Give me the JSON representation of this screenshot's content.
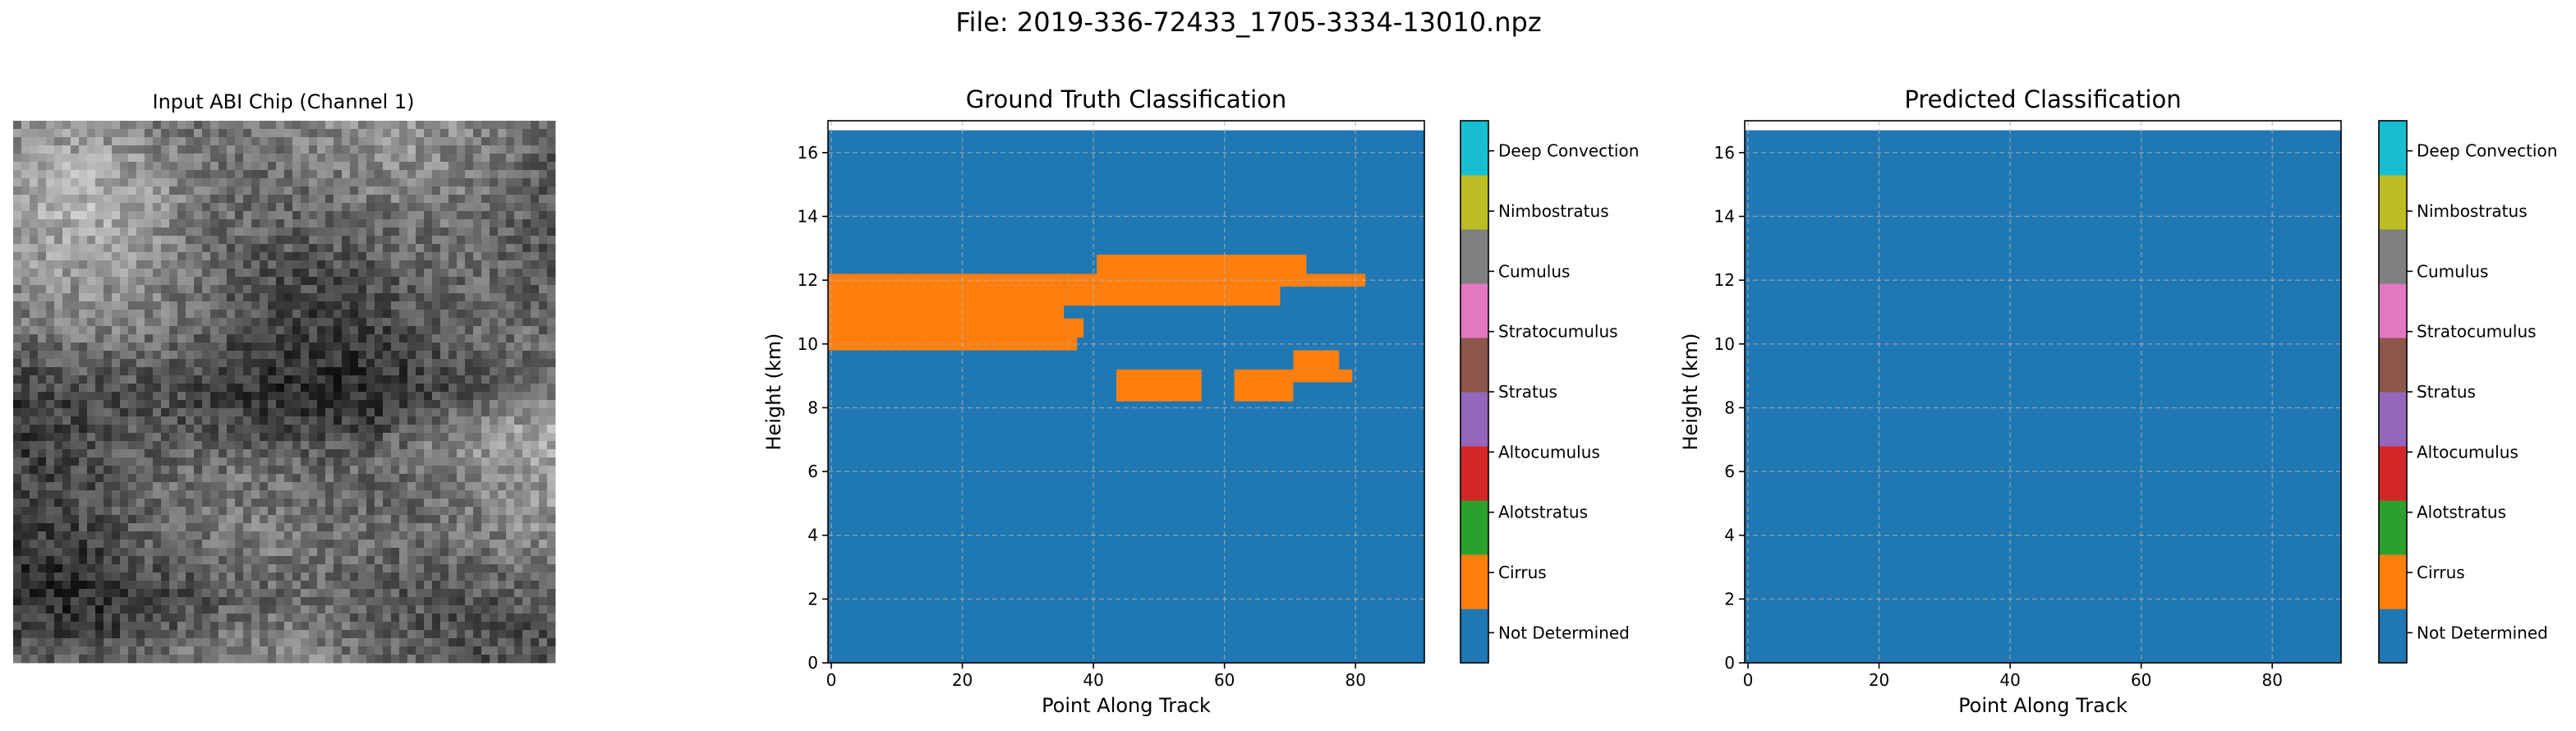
{
  "figure_title": "File: 2019-336-72433_1705-3334-13010.npz",
  "image_panel": {
    "title": "Input ABI Chip (Channel 1)"
  },
  "class_colors": {
    "Not Determined": "#1f77b4",
    "Cirrus": "#ff7f0e",
    "Alotstratus": "#2ca02c",
    "Altocumulus": "#d62728",
    "Stratus": "#9467bd",
    "Stratocumulus": "#8c564b",
    "Cumulus": "#e377c2",
    "Nimbostratus": "#7f7f7f",
    "Deep Convection": "#bcbd22",
    "Top": "#17becf"
  },
  "chart_data": [
    {
      "type": "heatmap",
      "title": "Ground Truth Classification",
      "xlabel": "Point Along Track",
      "ylabel": "Height (km)",
      "xlim": [
        -0.5,
        90.5
      ],
      "ylim": [
        0,
        17
      ],
      "data_top_km": 16.7,
      "xticks": [
        0,
        20,
        40,
        60,
        80
      ],
      "yticks": [
        0,
        2,
        4,
        6,
        8,
        10,
        12,
        14,
        16
      ],
      "grid": true,
      "background_class": "Not Determined",
      "regions": [
        {
          "class": "Cirrus",
          "x": [
            -0.5,
            35.5
          ],
          "y": [
            9.8,
            12.2
          ]
        },
        {
          "class": "Cirrus",
          "x": [
            35.5,
            37.5
          ],
          "y": [
            9.8,
            10.2
          ]
        },
        {
          "class": "Cirrus",
          "x": [
            35.5,
            38.5
          ],
          "y": [
            10.2,
            10.8
          ]
        },
        {
          "class": "Cirrus",
          "x": [
            35.5,
            40.5
          ],
          "y": [
            11.2,
            12.2
          ]
        },
        {
          "class": "Cirrus",
          "x": [
            40.5,
            68.5
          ],
          "y": [
            11.2,
            12.8
          ]
        },
        {
          "class": "Cirrus",
          "x": [
            68.5,
            72.5
          ],
          "y": [
            11.8,
            12.8
          ]
        },
        {
          "class": "Cirrus",
          "x": [
            72.5,
            81.5
          ],
          "y": [
            11.8,
            12.2
          ]
        },
        {
          "class": "Cirrus",
          "x": [
            43.5,
            56.5
          ],
          "y": [
            8.2,
            9.2
          ]
        },
        {
          "class": "Cirrus",
          "x": [
            61.5,
            70.5
          ],
          "y": [
            8.2,
            9.2
          ]
        },
        {
          "class": "Cirrus",
          "x": [
            70.5,
            79.5
          ],
          "y": [
            8.8,
            9.2
          ]
        },
        {
          "class": "Cirrus",
          "x": [
            70.5,
            77.5
          ],
          "y": [
            9.2,
            9.8
          ]
        }
      ]
    },
    {
      "type": "heatmap",
      "title": "Predicted Classification",
      "xlabel": "Point Along Track",
      "ylabel": "Height (km)",
      "xlim": [
        -0.5,
        90.5
      ],
      "ylim": [
        0,
        17
      ],
      "data_top_km": 16.7,
      "xticks": [
        0,
        20,
        40,
        60,
        80
      ],
      "yticks": [
        0,
        2,
        4,
        6,
        8,
        10,
        12,
        14,
        16
      ],
      "grid": true,
      "background_class": "Not Determined",
      "regions": []
    }
  ],
  "colorbar": {
    "labels": [
      "Not Determined",
      "Cirrus",
      "Alotstratus",
      "Altocumulus",
      "Stratus",
      "Stratocumulus",
      "Cumulus",
      "Nimbostratus",
      "Deep Convection"
    ],
    "colors": [
      "#1f77b4",
      "#ff7f0e",
      "#2ca02c",
      "#d62728",
      "#9467bd",
      "#8c564b",
      "#e377c2",
      "#7f7f7f",
      "#bcbd22",
      "#17becf"
    ]
  }
}
